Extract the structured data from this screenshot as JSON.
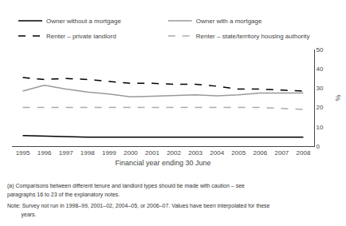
{
  "chart_data": {
    "type": "line",
    "x": [
      1995,
      1996,
      1997,
      1998,
      1999,
      2000,
      2001,
      2002,
      2003,
      2004,
      2005,
      2006,
      2007,
      2008
    ],
    "series": [
      {
        "name": "Owner without a mortgage",
        "color": "#000000",
        "line_style": "solid",
        "values": [
          5.5,
          5.2,
          4.8,
          4.7,
          4.7,
          4.6,
          4.7,
          4.7,
          4.7,
          4.7,
          4.7,
          4.6,
          4.6,
          4.7
        ]
      },
      {
        "name": "Owner with a mortgage",
        "color": "#999999",
        "line_style": "solid",
        "values": [
          28.5,
          31.5,
          29.5,
          28.0,
          27.0,
          25.5,
          25.8,
          26.0,
          26.5,
          26.0,
          26.5,
          27.5,
          27.5,
          27.5
        ]
      },
      {
        "name": "Renter – private landlord",
        "color": "#000000",
        "line_style": "dashed",
        "values": [
          35.5,
          34.5,
          35.0,
          34.5,
          33.5,
          32.5,
          32.5,
          32.0,
          32.0,
          31.0,
          29.5,
          29.5,
          29.0,
          28.5
        ]
      },
      {
        "name": "Renter – state/territory housing authority",
        "color": "#aaaaaa",
        "line_style": "dashed",
        "values": [
          20.0,
          20.0,
          20.0,
          20.0,
          20.0,
          20.0,
          20.0,
          20.0,
          20.0,
          20.0,
          20.0,
          20.0,
          19.5,
          19.0
        ]
      }
    ],
    "xlabel": "Financial year ending 30 June",
    "ylabel": "%",
    "xlim": [
      1994.5,
      2008.5
    ],
    "xticks": [
      1995,
      1996,
      1997,
      1998,
      1999,
      2000,
      2001,
      2002,
      2003,
      2004,
      2005,
      2006,
      2007,
      2008
    ],
    "ylim": [
      0,
      50
    ],
    "yticks": [
      0,
      10,
      20,
      30,
      40,
      50
    ],
    "grid": false,
    "legend": "upper right",
    "annotations": [
      "(a) Comparisons between different tenure and landlord types should be made with caution – see",
      "paragraphs 16 to 23 of the explanatory notes.",
      "Note: Survey not run in 1998–99, 2001–02, 2004–05, or 2006–07. Values have been interpolated for these",
      "         years."
    ]
  }
}
